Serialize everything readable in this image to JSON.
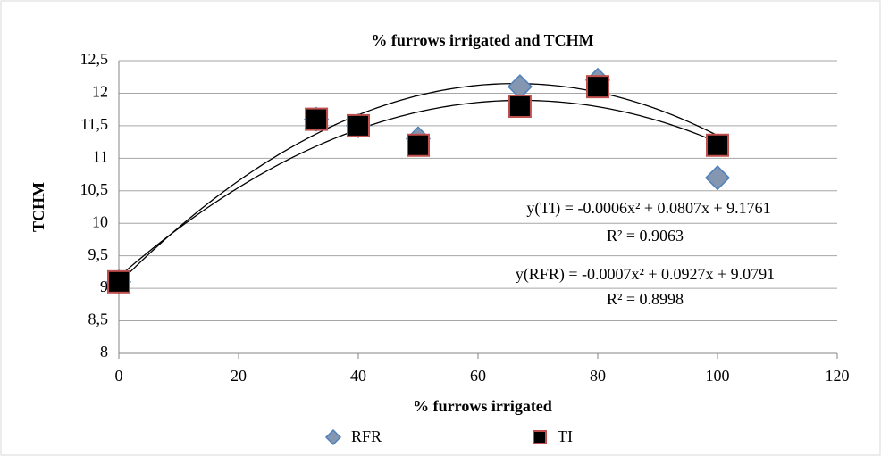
{
  "chart_data": {
    "type": "scatter",
    "title": "% furrows irrigated and TCHM",
    "x_label": "% furrows irrigated",
    "y_label": "TCHM",
    "xlim": [
      0,
      120
    ],
    "xticks": [
      0,
      20,
      40,
      60,
      80,
      100,
      120
    ],
    "ylim": [
      8,
      12.5
    ],
    "yticks": [
      8,
      {
        "value": 8.5,
        "label": "8,5"
      },
      9,
      {
        "value": 9.5,
        "label": "9,5"
      },
      10,
      {
        "value": 10.5,
        "label": "10,5"
      },
      11,
      {
        "value": 11.5,
        "label": "11,5"
      },
      12,
      {
        "value": 12.5,
        "label": "12,5"
      }
    ],
    "grid": true,
    "series": [
      {
        "name": "RFR",
        "color": "#8496b0",
        "marker": "diamond",
        "x": [
          0,
          33,
          40,
          50,
          67,
          80,
          100
        ],
        "values": [
          9.1,
          11.6,
          11.5,
          11.3,
          12.1,
          12.2,
          10.7
        ],
        "trend": {
          "coefficients": [
            -0.0007,
            0.0927,
            9.0791
          ],
          "equation": "y(RFR) = -0.0007x² + 0.0927x + 9.0791",
          "r2": "R² = 0.8998"
        }
      },
      {
        "name": "TI",
        "color": "#000000",
        "marker": "square",
        "x": [
          0,
          33,
          40,
          50,
          67,
          80,
          100
        ],
        "values": [
          9.1,
          11.6,
          11.5,
          11.2,
          11.8,
          12.1,
          11.2
        ],
        "trend": {
          "coefficients": [
            -0.0006,
            0.0807,
            9.1761
          ],
          "equation": "y(TI) = -0.0006x² + 0.0807x + 9.1761",
          "r2": "R² = 0.9063"
        }
      }
    ]
  }
}
